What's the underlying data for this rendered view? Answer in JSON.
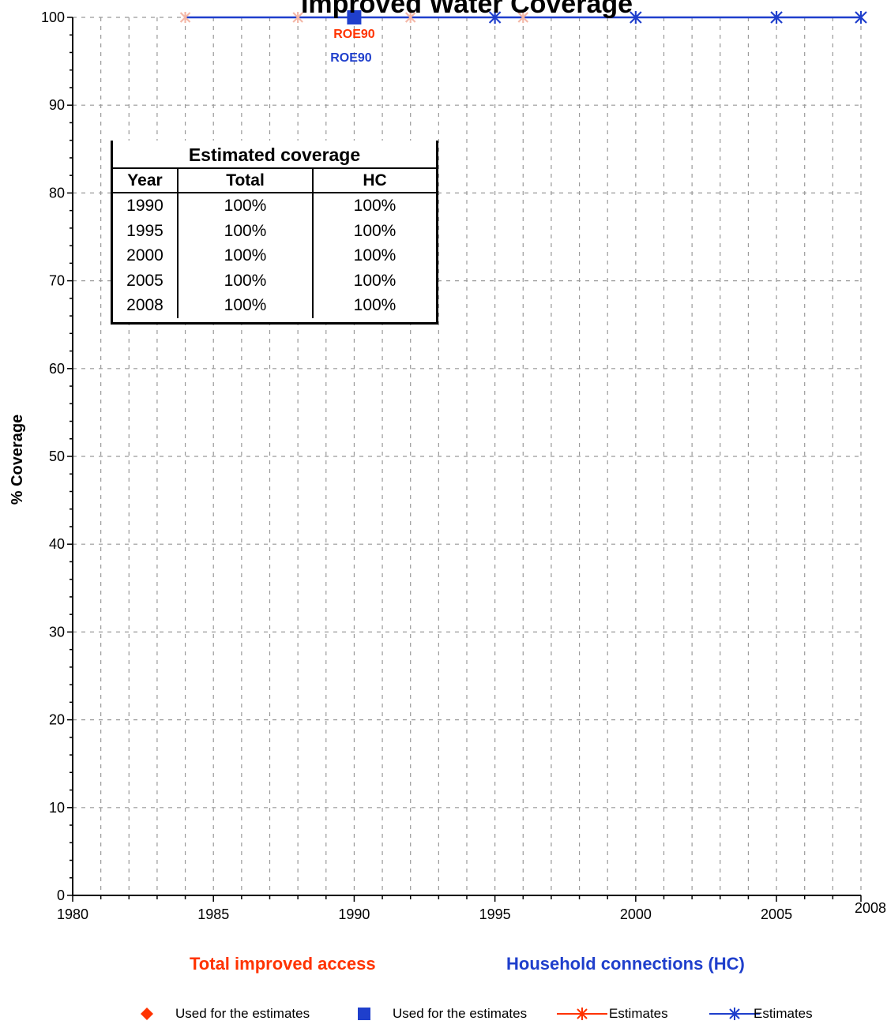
{
  "chart_data": {
    "type": "line",
    "title": "Improved Water Coverage",
    "ylabel": "% Coverage",
    "xlim": [
      1980,
      2008
    ],
    "ylim": [
      0,
      100
    ],
    "x_ticks": [
      1980,
      1985,
      1990,
      1995,
      2000,
      2005,
      2008
    ],
    "y_ticks": [
      0,
      10,
      20,
      30,
      40,
      50,
      60,
      70,
      80,
      90,
      100
    ],
    "grid": true,
    "series": [
      {
        "name": "Total improved access",
        "color": "#ff3300",
        "estimates": [
          {
            "x": 1984,
            "y": 100
          },
          {
            "x": 1988,
            "y": 100
          },
          {
            "x": 1992,
            "y": 100
          },
          {
            "x": 1996,
            "y": 100
          }
        ],
        "survey_points": [
          {
            "x": 1990,
            "y": 100,
            "label": "ROE90"
          }
        ]
      },
      {
        "name": "Household connections (HC)",
        "color": "#1f3fcc",
        "line_start": 1984,
        "estimates": [
          {
            "x": 1995,
            "y": 100
          },
          {
            "x": 2000,
            "y": 100
          },
          {
            "x": 2005,
            "y": 100
          },
          {
            "x": 2008,
            "y": 100
          }
        ],
        "survey_points": [
          {
            "x": 1990,
            "y": 100,
            "label": "ROE90"
          }
        ]
      }
    ]
  },
  "table": {
    "title": "Estimated coverage",
    "headers": [
      "Year",
      "Total",
      "HC"
    ],
    "rows": [
      [
        "1990",
        "100%",
        "100%"
      ],
      [
        "1995",
        "100%",
        "100%"
      ],
      [
        "2000",
        "100%",
        "100%"
      ],
      [
        "2005",
        "100%",
        "100%"
      ],
      [
        "2008",
        "100%",
        "100%"
      ]
    ]
  },
  "series_labels": {
    "total": "Total improved access",
    "hc": "Household connections (HC)"
  },
  "legend": {
    "total_used": "Used for the estimates",
    "hc_used": "Used for the estimates",
    "total_est": "Estimates",
    "hc_est": "Estimates"
  },
  "colors": {
    "total": "#ff3300",
    "hc": "#1f3fcc",
    "grid": "#999999"
  }
}
